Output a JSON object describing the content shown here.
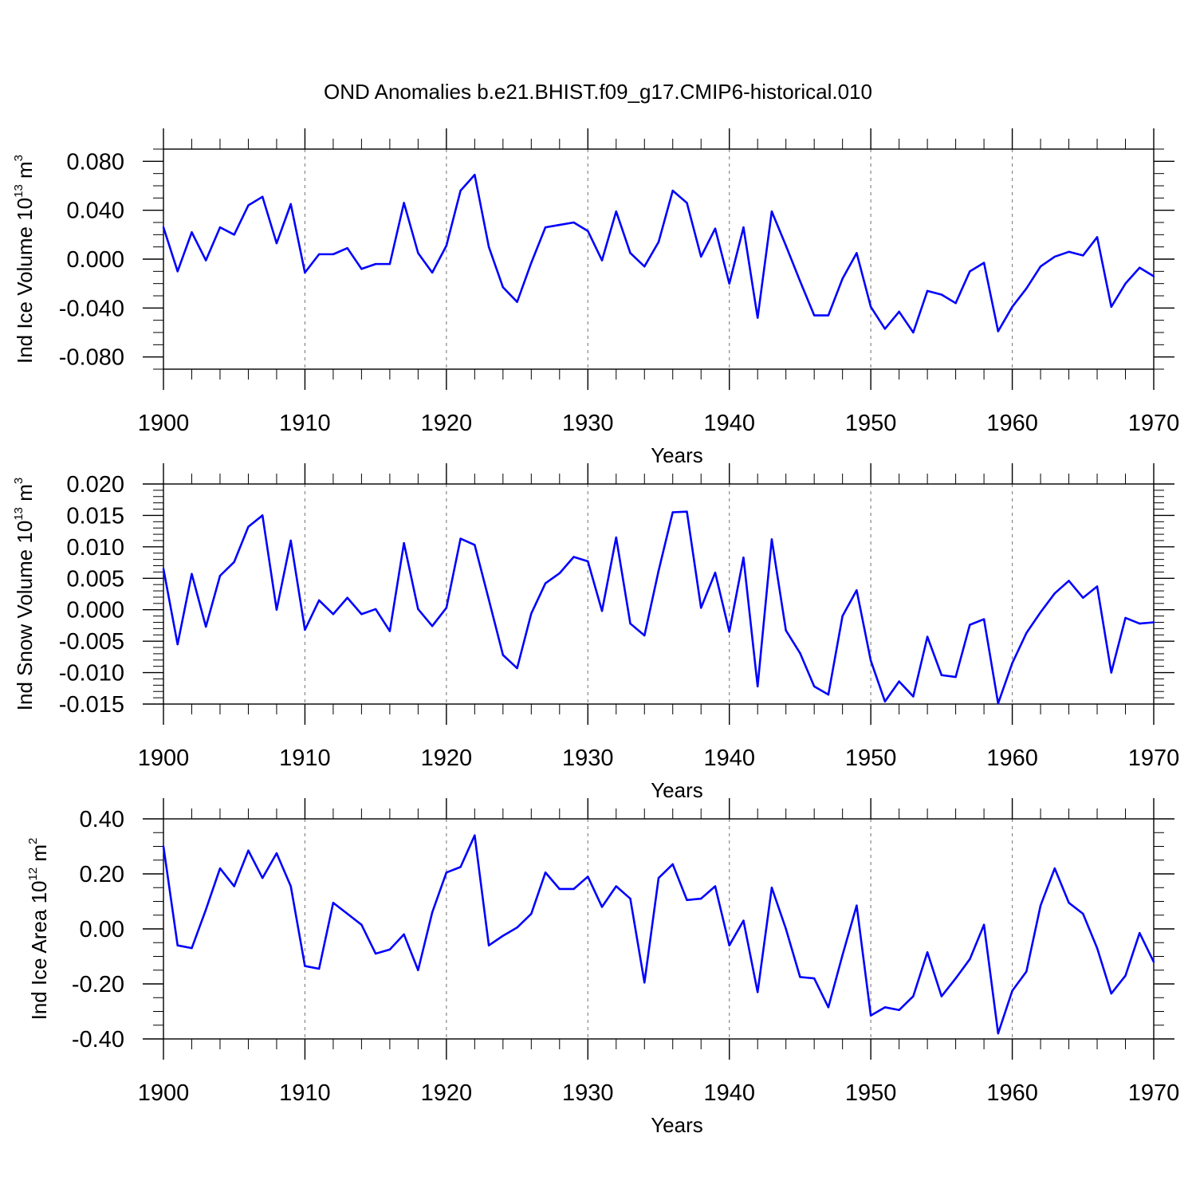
{
  "title": "OND Anomalies b.e21.BHIST.f09_g17.CMIP6-historical.010",
  "line_color": "#0000ff",
  "grid_color": "#888888",
  "chart_data": [
    {
      "type": "line",
      "name": "ind-ice-volume",
      "ylabel": "Ind Ice Volume 10",
      "ylabel_exp": "13",
      "ylabel_unit": " m",
      "ylabel_unit_exp": "3",
      "xlabel": "Years",
      "xlim": [
        1900,
        1970
      ],
      "ylim": [
        -0.09,
        0.09
      ],
      "yticks": [
        -0.08,
        -0.04,
        0.0,
        0.04,
        0.08
      ],
      "ytick_labels": [
        "-0.080",
        "-0.040",
        "0.000",
        "0.040",
        "0.080"
      ],
      "yminor_step": 0.01,
      "xticks": [
        1900,
        1910,
        1920,
        1930,
        1940,
        1950,
        1960,
        1970
      ],
      "xtick_labels": [
        "1900",
        "1910",
        "1920",
        "1930",
        "1940",
        "1950",
        "1960",
        "1970"
      ],
      "grid": "vertical dashed at major x ticks",
      "x": [
        1900,
        1901,
        1902,
        1903,
        1904,
        1905,
        1906,
        1907,
        1908,
        1909,
        1910,
        1911,
        1912,
        1913,
        1914,
        1915,
        1916,
        1917,
        1918,
        1919,
        1920,
        1921,
        1922,
        1923,
        1924,
        1925,
        1926,
        1927,
        1928,
        1929,
        1930,
        1931,
        1932,
        1933,
        1934,
        1935,
        1936,
        1937,
        1938,
        1939,
        1940,
        1941,
        1942,
        1943,
        1944,
        1945,
        1946,
        1947,
        1948,
        1949,
        1950,
        1951,
        1952,
        1953,
        1954,
        1955,
        1956,
        1957,
        1958,
        1959,
        1960,
        1961,
        1962,
        1963,
        1964,
        1965,
        1966,
        1967,
        1968,
        1969,
        1970
      ],
      "values": [
        0.026,
        -0.01,
        0.022,
        -0.001,
        0.026,
        0.02,
        0.044,
        0.051,
        0.013,
        0.045,
        -0.011,
        0.004,
        0.004,
        0.009,
        -0.008,
        -0.004,
        -0.004,
        0.046,
        0.005,
        -0.011,
        0.011,
        0.056,
        0.069,
        0.01,
        -0.023,
        -0.035,
        -0.003,
        0.026,
        0.028,
        0.03,
        0.023,
        -0.001,
        0.039,
        0.005,
        -0.006,
        0.014,
        0.056,
        0.046,
        0.002,
        0.025,
        -0.02,
        0.026,
        -0.048,
        0.039,
        0.011,
        -0.018,
        -0.046,
        -0.046,
        -0.016,
        0.005,
        -0.039,
        -0.057,
        -0.043,
        -0.06,
        -0.026,
        -0.029,
        -0.036,
        -0.01,
        -0.003,
        -0.059,
        -0.039,
        -0.024,
        -0.006,
        0.002,
        0.006,
        0.003,
        0.018,
        -0.039,
        -0.02,
        -0.007,
        -0.014
      ]
    },
    {
      "type": "line",
      "name": "ind-snow-volume",
      "ylabel": "Ind Snow Volume 10",
      "ylabel_exp": "13",
      "ylabel_unit": " m",
      "ylabel_unit_exp": "3",
      "xlabel": "Years",
      "xlim": [
        1900,
        1970
      ],
      "ylim": [
        -0.015,
        0.02
      ],
      "yticks": [
        -0.015,
        -0.01,
        -0.005,
        0.0,
        0.005,
        0.01,
        0.015,
        0.02
      ],
      "ytick_labels": [
        "-0.015",
        "-0.010",
        "-0.005",
        "0.000",
        "0.005",
        "0.010",
        "0.015",
        "0.020"
      ],
      "yminor_step": 0.001,
      "xticks": [
        1900,
        1910,
        1920,
        1930,
        1940,
        1950,
        1960,
        1970
      ],
      "xtick_labels": [
        "1900",
        "1910",
        "1920",
        "1930",
        "1940",
        "1950",
        "1960",
        "1970"
      ],
      "grid": "vertical dashed at major x ticks",
      "x": [
        1900,
        1901,
        1902,
        1903,
        1904,
        1905,
        1906,
        1907,
        1908,
        1909,
        1910,
        1911,
        1912,
        1913,
        1914,
        1915,
        1916,
        1917,
        1918,
        1919,
        1920,
        1921,
        1922,
        1923,
        1924,
        1925,
        1926,
        1927,
        1928,
        1929,
        1930,
        1931,
        1932,
        1933,
        1934,
        1935,
        1936,
        1937,
        1938,
        1939,
        1940,
        1941,
        1942,
        1943,
        1944,
        1945,
        1946,
        1947,
        1948,
        1949,
        1950,
        1951,
        1952,
        1953,
        1954,
        1955,
        1956,
        1957,
        1958,
        1959,
        1960,
        1961,
        1962,
        1963,
        1964,
        1965,
        1966,
        1967,
        1968,
        1969,
        1970
      ],
      "values": [
        0.0065,
        -0.0055,
        0.0057,
        -0.0027,
        0.0054,
        0.0076,
        0.0132,
        0.015,
        0.0,
        0.011,
        -0.0032,
        0.0015,
        -0.0007,
        0.0019,
        -0.0007,
        0.0001,
        -0.0034,
        0.0106,
        0.0001,
        -0.0026,
        0.0003,
        0.0113,
        0.0103,
        0.0016,
        -0.0072,
        -0.0093,
        -0.0006,
        0.0042,
        0.0058,
        0.0084,
        0.0077,
        -0.0002,
        0.0115,
        -0.0022,
        -0.0041,
        0.0062,
        0.0155,
        0.0156,
        0.0003,
        0.0059,
        -0.0035,
        0.0083,
        -0.0122,
        0.0112,
        -0.0033,
        -0.0069,
        -0.0122,
        -0.0135,
        -0.001,
        0.0031,
        -0.0081,
        -0.0146,
        -0.0114,
        -0.0138,
        -0.0043,
        -0.0104,
        -0.0107,
        -0.0024,
        -0.0015,
        -0.0149,
        -0.0085,
        -0.0037,
        -0.0004,
        0.0026,
        0.0046,
        0.0019,
        0.0037,
        -0.01,
        -0.0013,
        -0.0022,
        -0.002
      ]
    },
    {
      "type": "line",
      "name": "ind-ice-area",
      "ylabel": "Ind Ice Area 10",
      "ylabel_exp": "12",
      "ylabel_unit": " m",
      "ylabel_unit_exp": "2",
      "xlabel": "Years",
      "xlim": [
        1900,
        1970
      ],
      "ylim": [
        -0.4,
        0.4
      ],
      "yticks": [
        -0.4,
        -0.2,
        0.0,
        0.2,
        0.4
      ],
      "ytick_labels": [
        "-0.40",
        "-0.20",
        "0.00",
        "0.20",
        "0.40"
      ],
      "yminor_step": 0.05,
      "xticks": [
        1900,
        1910,
        1920,
        1930,
        1940,
        1950,
        1960,
        1970
      ],
      "xtick_labels": [
        "1900",
        "1910",
        "1920",
        "1930",
        "1940",
        "1950",
        "1960",
        "1970"
      ],
      "grid": "vertical dashed at major x ticks",
      "x": [
        1900,
        1901,
        1902,
        1903,
        1904,
        1905,
        1906,
        1907,
        1908,
        1909,
        1910,
        1911,
        1912,
        1913,
        1914,
        1915,
        1916,
        1917,
        1918,
        1919,
        1920,
        1921,
        1922,
        1923,
        1924,
        1925,
        1926,
        1927,
        1928,
        1929,
        1930,
        1931,
        1932,
        1933,
        1934,
        1935,
        1936,
        1937,
        1938,
        1939,
        1940,
        1941,
        1942,
        1943,
        1944,
        1945,
        1946,
        1947,
        1948,
        1949,
        1950,
        1951,
        1952,
        1953,
        1954,
        1955,
        1956,
        1957,
        1958,
        1959,
        1960,
        1961,
        1962,
        1963,
        1964,
        1965,
        1966,
        1967,
        1968,
        1969,
        1970
      ],
      "values": [
        0.3,
        -0.06,
        -0.07,
        0.07,
        0.22,
        0.155,
        0.285,
        0.185,
        0.275,
        0.155,
        -0.135,
        -0.145,
        0.095,
        0.055,
        0.015,
        -0.09,
        -0.075,
        -0.02,
        -0.15,
        0.06,
        0.205,
        0.225,
        0.34,
        -0.06,
        -0.025,
        0.005,
        0.055,
        0.205,
        0.145,
        0.145,
        0.19,
        0.08,
        0.155,
        0.11,
        -0.195,
        0.185,
        0.235,
        0.105,
        0.11,
        0.155,
        -0.06,
        0.03,
        -0.23,
        0.15,
        0.0,
        -0.175,
        -0.18,
        -0.285,
        -0.095,
        0.085,
        -0.315,
        -0.285,
        -0.295,
        -0.245,
        -0.085,
        -0.245,
        -0.18,
        -0.11,
        0.015,
        -0.38,
        -0.225,
        -0.155,
        0.085,
        0.22,
        0.095,
        0.055,
        -0.07,
        -0.235,
        -0.17,
        -0.015,
        -0.12
      ]
    }
  ]
}
